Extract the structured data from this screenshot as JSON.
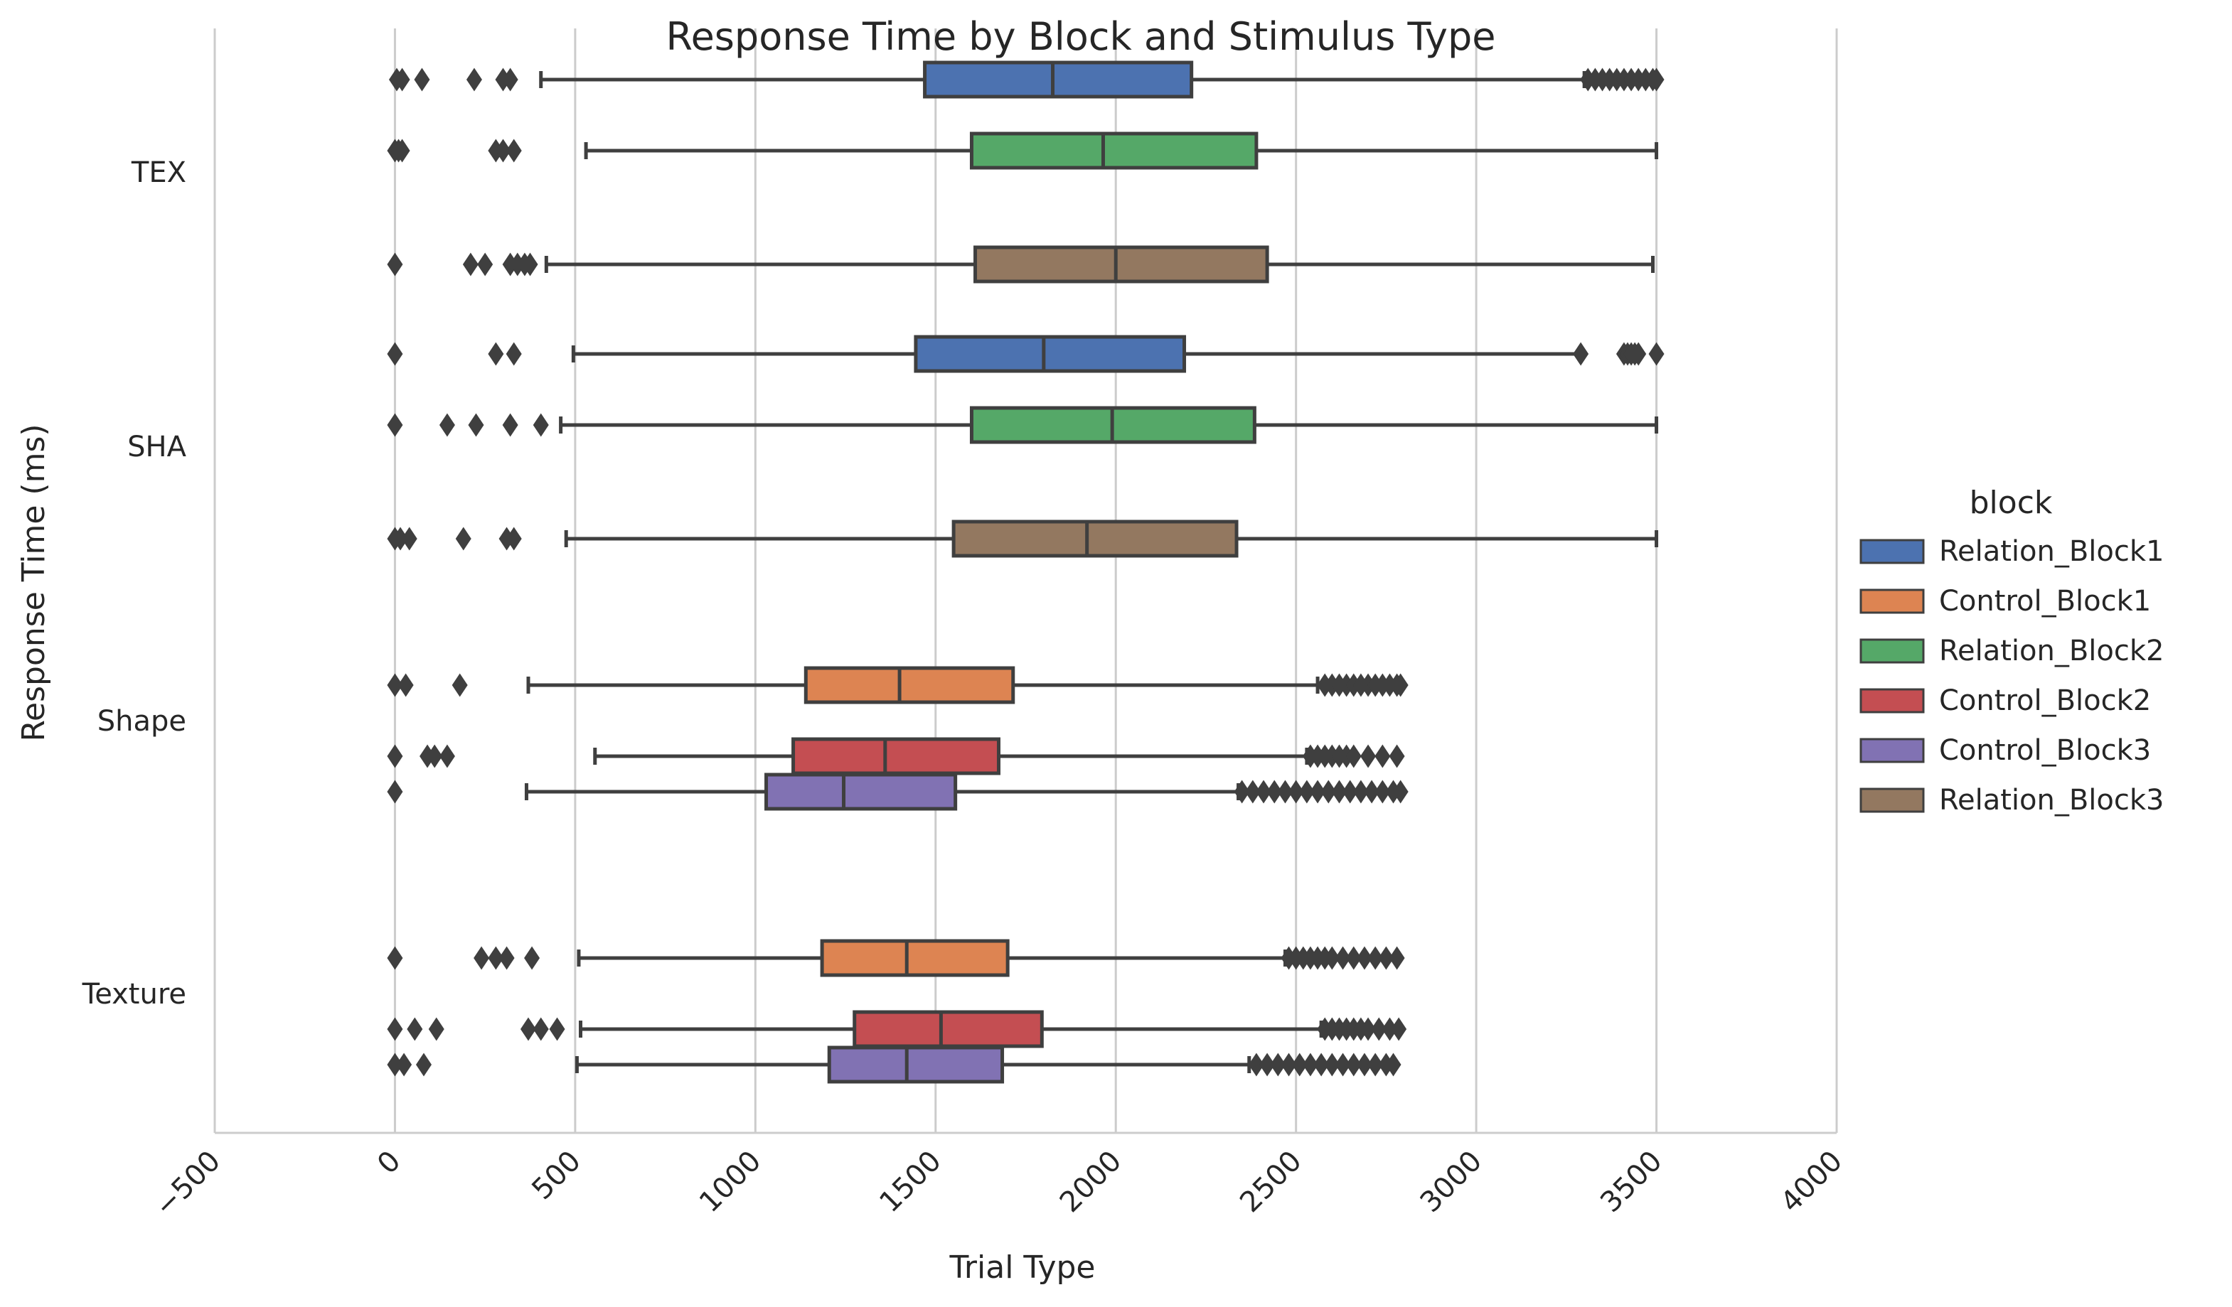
{
  "chart_data": {
    "type": "boxplot",
    "orientation": "horizontal",
    "title": "Response Time by Block and Stimulus Type",
    "xlabel": "Trial Type",
    "ylabel": "Response Time (ms)",
    "xlim": [
      -500,
      4000
    ],
    "xticks": [
      -500,
      0,
      500,
      1000,
      1500,
      2000,
      2500,
      3000,
      3500,
      4000
    ],
    "xtick_labels": [
      "−500",
      "0",
      "500",
      "1000",
      "1500",
      "2000",
      "2500",
      "3000",
      "3500",
      "4000"
    ],
    "categories": [
      "TEX",
      "SHA",
      "Shape",
      "Texture"
    ],
    "grid": "x-vertical",
    "legend": {
      "title": "block",
      "placement": "right",
      "entries": [
        "Relation_Block1",
        "Control_Block1",
        "Relation_Block2",
        "Control_Block2",
        "Control_Block3",
        "Relation_Block3"
      ]
    },
    "series": [
      {
        "name": "Relation_Block1",
        "color": "#4c72b0"
      },
      {
        "name": "Control_Block1",
        "color": "#dd8452"
      },
      {
        "name": "Relation_Block2",
        "color": "#55a868"
      },
      {
        "name": "Control_Block2",
        "color": "#c44e52"
      },
      {
        "name": "Control_Block3",
        "color": "#8172b3"
      },
      {
        "name": "Relation_Block3",
        "color": "#937860"
      }
    ],
    "boxes": [
      {
        "category": "TEX",
        "series": "Relation_Block1",
        "slot": 0,
        "whislo": 405,
        "q1": 1470,
        "med": 1825,
        "q3": 2210,
        "whishi": 3300,
        "fliers": [
          5,
          20,
          75,
          220,
          300,
          320,
          3310,
          3330,
          3350,
          3370,
          3390,
          3410,
          3430,
          3450,
          3470,
          3490,
          3500
        ]
      },
      {
        "category": "TEX",
        "series": "Relation_Block2",
        "slot": 2,
        "whislo": 530,
        "q1": 1600,
        "med": 1965,
        "q3": 2390,
        "whishi": 3500,
        "fliers": [
          0,
          10,
          20,
          280,
          300,
          330
        ]
      },
      {
        "category": "TEX",
        "series": "Relation_Block3",
        "slot": 5,
        "whislo": 420,
        "q1": 1610,
        "med": 2000,
        "q3": 2420,
        "whishi": 3490,
        "fliers": [
          0,
          210,
          250,
          320,
          340,
          360,
          375
        ]
      },
      {
        "category": "SHA",
        "series": "Relation_Block1",
        "slot": 0,
        "whislo": 495,
        "q1": 1445,
        "med": 1800,
        "q3": 2190,
        "whishi": 3290,
        "fliers": [
          0,
          280,
          330,
          3290,
          3410,
          3420,
          3430,
          3440,
          3450,
          3500
        ]
      },
      {
        "category": "SHA",
        "series": "Relation_Block2",
        "slot": 2,
        "whislo": 460,
        "q1": 1600,
        "med": 1990,
        "q3": 2385,
        "whishi": 3500,
        "fliers": [
          0,
          145,
          225,
          320,
          405
        ]
      },
      {
        "category": "SHA",
        "series": "Relation_Block3",
        "slot": 5,
        "whislo": 475,
        "q1": 1550,
        "med": 1920,
        "q3": 2335,
        "whishi": 3500,
        "fliers": [
          0,
          15,
          40,
          190,
          310,
          330
        ]
      },
      {
        "category": "Shape",
        "series": "Control_Block1",
        "slot": 1,
        "whislo": 370,
        "q1": 1140,
        "med": 1400,
        "q3": 1715,
        "whishi": 2560,
        "fliers": [
          0,
          30,
          180,
          2580,
          2600,
          2620,
          2640,
          2660,
          2680,
          2700,
          2720,
          2740,
          2760,
          2780,
          2790
        ]
      },
      {
        "category": "Shape",
        "series": "Control_Block2",
        "slot": 3,
        "whislo": 555,
        "q1": 1105,
        "med": 1360,
        "q3": 1675,
        "whishi": 2530,
        "fliers": [
          0,
          90,
          110,
          145,
          2540,
          2560,
          2580,
          2600,
          2620,
          2640,
          2660,
          2700,
          2740,
          2780
        ]
      },
      {
        "category": "Shape",
        "series": "Control_Block3",
        "slot": 4,
        "whislo": 365,
        "q1": 1030,
        "med": 1245,
        "q3": 1555,
        "whishi": 2340,
        "fliers": [
          0,
          2350,
          2380,
          2410,
          2440,
          2470,
          2500,
          2530,
          2560,
          2590,
          2620,
          2650,
          2680,
          2710,
          2740,
          2770,
          2790
        ]
      },
      {
        "category": "Texture",
        "series": "Control_Block1",
        "slot": 1,
        "whislo": 510,
        "q1": 1185,
        "med": 1420,
        "q3": 1700,
        "whishi": 2470,
        "fliers": [
          0,
          240,
          280,
          310,
          380,
          2480,
          2500,
          2520,
          2540,
          2560,
          2580,
          2600,
          2630,
          2660,
          2690,
          2720,
          2750,
          2780
        ]
      },
      {
        "category": "Texture",
        "series": "Control_Block2",
        "slot": 3,
        "whislo": 515,
        "q1": 1275,
        "med": 1515,
        "q3": 1795,
        "whishi": 2570,
        "fliers": [
          0,
          55,
          115,
          370,
          405,
          450,
          2580,
          2600,
          2620,
          2640,
          2660,
          2680,
          2700,
          2730,
          2760,
          2785
        ]
      },
      {
        "category": "Texture",
        "series": "Control_Block3",
        "slot": 4,
        "whislo": 505,
        "q1": 1205,
        "med": 1420,
        "q3": 1685,
        "whishi": 2370,
        "fliers": [
          0,
          25,
          80,
          2390,
          2420,
          2450,
          2480,
          2510,
          2540,
          2570,
          2600,
          2630,
          2660,
          2690,
          2720,
          2750,
          2770
        ]
      }
    ]
  }
}
